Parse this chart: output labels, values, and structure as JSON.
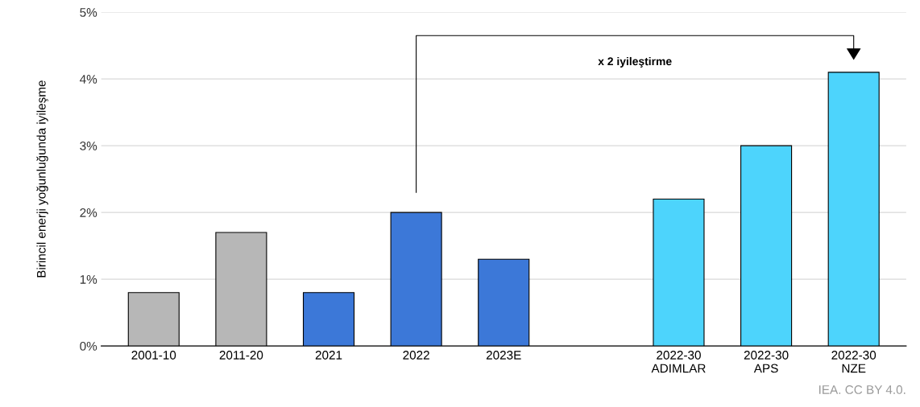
{
  "chart_data": {
    "type": "bar",
    "ylabel": "Birincil enerji yoğunluğunda iyileşme",
    "categories": [
      "2001-10",
      "2011-20",
      "2021",
      "2022",
      "2023E",
      null,
      "2022-30\nADIMLAR",
      "2022-30\nAPS",
      "2022-30\nNZE"
    ],
    "values": [
      0.8,
      1.7,
      0.8,
      2.0,
      1.3,
      null,
      2.2,
      3.0,
      4.1
    ],
    "colors": [
      "#b7b7b7",
      "#b7b7b7",
      "#3c78d8",
      "#3c78d8",
      "#3c78d8",
      null,
      "#4dd4fc",
      "#4dd4fc",
      "#4dd4fc"
    ],
    "ylim": [
      0,
      5
    ],
    "yticks": [
      {
        "value": 0,
        "label": "0%"
      },
      {
        "value": 1,
        "label": "1%"
      },
      {
        "value": 2,
        "label": "2%"
      },
      {
        "value": 3,
        "label": "3%"
      },
      {
        "value": 4,
        "label": "4%"
      },
      {
        "value": 5,
        "label": "5%"
      }
    ],
    "grid": "y",
    "annotations": [
      "x 2 iyileştirme",
      "IEA. CC BY 4.0."
    ]
  }
}
